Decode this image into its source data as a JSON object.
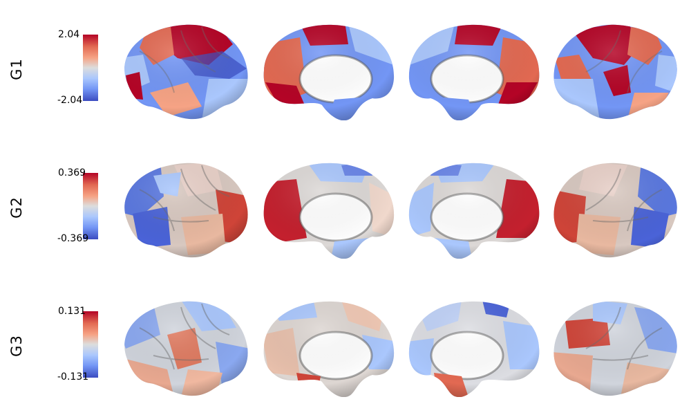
{
  "rows": [
    {
      "label": "G1",
      "max": "2.04",
      "min": "-2.04"
    },
    {
      "label": "G2",
      "max": "0.369",
      "min": "-0.369"
    },
    {
      "label": "G3",
      "max": "0.131",
      "min": "-0.131"
    }
  ],
  "colormap": {
    "name": "coolwarm",
    "high": "#b40426",
    "mid": "#dddddd",
    "low": "#3b4cc0"
  },
  "views": [
    "lateral-left",
    "medial-left",
    "medial-right",
    "lateral-right"
  ]
}
